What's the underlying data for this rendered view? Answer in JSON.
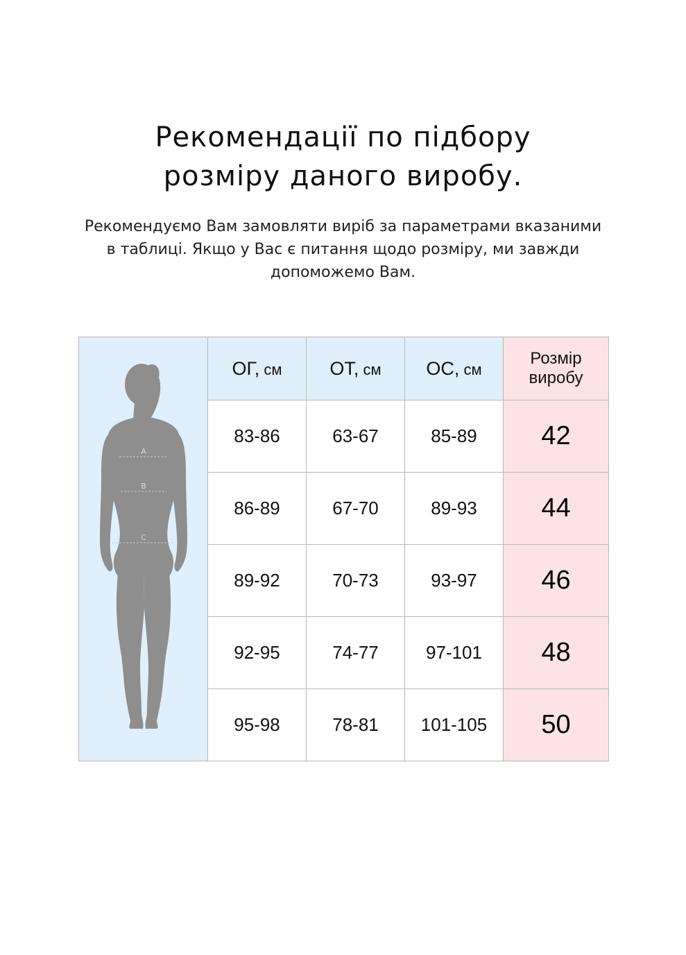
{
  "title": {
    "line1": "Рекомендації по підбору",
    "line2": "розміру даного виробу."
  },
  "intro": {
    "line1": "Рекомендуємо Вам замовляти виріб за параметрами вказаними",
    "line2": "в таблиці. Якщо у Вас є питання щодо розміру, ми завжди",
    "line3": "допоможемо Вам."
  },
  "figure": {
    "label_a": "A",
    "label_b": "B",
    "label_c": "C",
    "fill_color": "#8e8e8e",
    "icon": "female-body-silhouette-icon"
  },
  "table": {
    "headers": {
      "og": {
        "name": "ОГ,",
        "unit": " см"
      },
      "ot": {
        "name": "ОТ,",
        "unit": " см"
      },
      "os": {
        "name": "ОС,",
        "unit": " см"
      },
      "size": {
        "line1": "Розмір",
        "line2": "виробу"
      }
    },
    "rows": [
      {
        "og": "83-86",
        "ot": "63-67",
        "os": "85-89",
        "size": "42"
      },
      {
        "og": "86-89",
        "ot": "67-70",
        "os": "89-93",
        "size": "44"
      },
      {
        "og": "89-92",
        "ot": "70-73",
        "os": "93-97",
        "size": "46"
      },
      {
        "og": "92-95",
        "ot": "74-77",
        "os": "97-101",
        "size": "48"
      },
      {
        "og": "95-98",
        "ot": "78-81",
        "os": "101-105",
        "size": "50"
      }
    ],
    "colors": {
      "header_blue": "#dff0fc",
      "size_pink": "#fde3e6",
      "border": "#b8b8b8"
    }
  }
}
